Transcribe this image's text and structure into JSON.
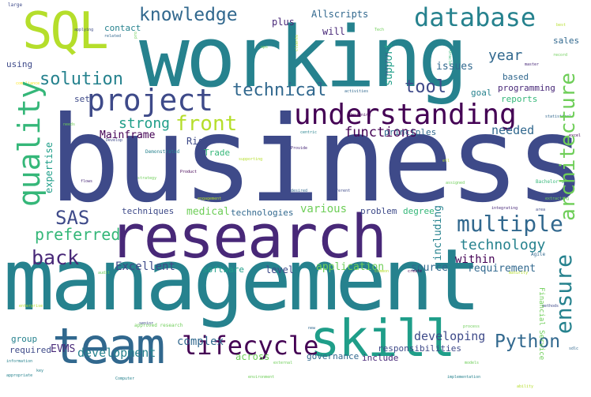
{
  "word_cloud": {
    "palette": {
      "dark_purple": "#440154",
      "purple": "#482878",
      "indigo": "#3e4a89",
      "blue": "#31688e",
      "teal_blue": "#26828e",
      "teal": "#1f9e89",
      "green": "#35b779",
      "light_green": "#6ece58",
      "lime": "#b5de2b",
      "yellow": "#fde725"
    },
    "words": [
      {
        "text": "business",
        "color": "#3e4a89"
      },
      {
        "text": "management",
        "color": "#26828e"
      },
      {
        "text": "working",
        "color": "#26828e"
      },
      {
        "text": "research",
        "color": "#482878"
      },
      {
        "text": "team",
        "color": "#31688e"
      },
      {
        "text": "skill",
        "color": "#1f9e89"
      },
      {
        "text": "SQL",
        "color": "#b5de2b"
      },
      {
        "text": "understanding",
        "color": "#440154"
      },
      {
        "text": "project",
        "color": "#3e4a89"
      },
      {
        "text": "database",
        "color": "#26828e"
      },
      {
        "text": "knowledge",
        "color": "#31688e"
      },
      {
        "text": "quality",
        "color": "#35b779"
      },
      {
        "text": "multiple",
        "color": "#31688e"
      },
      {
        "text": "architecture",
        "color": "#6ece58"
      },
      {
        "text": "front",
        "color": "#b5de2b"
      },
      {
        "text": "solution",
        "color": "#26828e"
      },
      {
        "text": "technical",
        "color": "#31688e"
      },
      {
        "text": "ensure",
        "color": "#26828e"
      },
      {
        "text": "lifecycle",
        "color": "#440154"
      },
      {
        "text": "Python",
        "color": "#31688e"
      },
      {
        "text": "back",
        "color": "#482878"
      },
      {
        "text": "SAS",
        "color": "#3e4a89"
      },
      {
        "text": "preferred",
        "color": "#35b779"
      },
      {
        "text": "technology",
        "color": "#26828e"
      },
      {
        "text": "tool",
        "color": "#3e4a89"
      },
      {
        "text": "strong",
        "color": "#1f9e89"
      },
      {
        "text": "year",
        "color": "#31688e"
      },
      {
        "text": "functions",
        "color": "#440154"
      },
      {
        "text": "developing",
        "color": "#3e4a89"
      },
      {
        "text": "development",
        "color": "#26828e"
      },
      {
        "text": "complex",
        "color": "#31688e"
      },
      {
        "text": "Excellent",
        "color": "#3e4a89"
      },
      {
        "text": "application",
        "color": "#6ece58"
      },
      {
        "text": "within",
        "color": "#440154"
      },
      {
        "text": "support",
        "color": "#1f9e89"
      },
      {
        "text": "issues",
        "color": "#31688e"
      },
      {
        "text": "including",
        "color": "#26828e"
      },
      {
        "text": "Mainframe",
        "color": "#440154"
      },
      {
        "text": "expertise",
        "color": "#1f9e89"
      },
      {
        "text": "needed",
        "color": "#31688e"
      },
      {
        "text": "various",
        "color": "#6ece58"
      },
      {
        "text": "medical",
        "color": "#6ece58"
      },
      {
        "text": "source",
        "color": "#31688e"
      },
      {
        "text": "requirement",
        "color": "#31688e"
      },
      {
        "text": "reports",
        "color": "#35b779"
      },
      {
        "text": "programming",
        "color": "#482878"
      },
      {
        "text": "based",
        "color": "#31688e"
      },
      {
        "text": "goal",
        "color": "#26828e"
      },
      {
        "text": "principles",
        "color": "#31688e"
      },
      {
        "text": "techniques",
        "color": "#3e4a89"
      },
      {
        "text": "technologies",
        "color": "#31688e"
      },
      {
        "text": "problem",
        "color": "#3e4a89"
      },
      {
        "text": "degree",
        "color": "#35b779"
      },
      {
        "text": "software",
        "color": "#1f9e89"
      },
      {
        "text": "level",
        "color": "#3e4a89"
      },
      {
        "text": "across",
        "color": "#6ece58"
      },
      {
        "text": "include",
        "color": "#482878"
      },
      {
        "text": "responsibilities",
        "color": "#3e4a89"
      },
      {
        "text": "governance",
        "color": "#31688e"
      },
      {
        "text": "EVMS",
        "color": "#482878"
      },
      {
        "text": "required",
        "color": "#3e4a89"
      },
      {
        "text": "group",
        "color": "#26828e"
      },
      {
        "text": "Risk",
        "color": "#3e4a89"
      },
      {
        "text": "Trade",
        "color": "#35b779"
      },
      {
        "text": "set",
        "color": "#3e4a89"
      },
      {
        "text": "using",
        "color": "#3e4a89"
      },
      {
        "text": "plus",
        "color": "#482878"
      },
      {
        "text": "will",
        "color": "#482878"
      },
      {
        "text": "contact",
        "color": "#26828e"
      },
      {
        "text": "Allscripts",
        "color": "#31688e"
      },
      {
        "text": "sales",
        "color": "#31688e"
      },
      {
        "text": "Financial Service",
        "color": "#6ece58"
      },
      {
        "text": "approved research",
        "color": "#6ece58"
      },
      {
        "text": "Bachelor s",
        "color": "#35b779"
      },
      {
        "text": "Demonstrated",
        "color": "#26828e"
      },
      {
        "text": "structures",
        "color": "#3e4a89"
      },
      {
        "text": "Oracle",
        "color": "#35b779"
      },
      {
        "text": "clients",
        "color": "#b5de2b"
      },
      {
        "text": "master",
        "color": "#482878"
      },
      {
        "text": "record",
        "color": "#6ece58"
      },
      {
        "text": "large",
        "color": "#3e4a89"
      },
      {
        "text": "applying",
        "color": "#3e4a89"
      },
      {
        "text": "related",
        "color": "#31688e"
      },
      {
        "text": "Agile",
        "color": "#31688e"
      },
      {
        "text": "centric",
        "color": "#26828e"
      },
      {
        "text": "Provide",
        "color": "#482878"
      },
      {
        "text": "Product",
        "color": "#440154"
      },
      {
        "text": "desired",
        "color": "#31688e"
      },
      {
        "text": "different",
        "color": "#3e4a89"
      },
      {
        "text": "assigned",
        "color": "#6ece58"
      },
      {
        "text": "Develop",
        "color": "#3e4a89"
      },
      {
        "text": "flows",
        "color": "#482878"
      },
      {
        "text": "needs",
        "color": "#6ece58"
      },
      {
        "text": "strategy",
        "color": "#6ece58"
      },
      {
        "text": "audit",
        "color": "#6ece58"
      },
      {
        "text": "senior",
        "color": "#3e4a89"
      },
      {
        "text": "information",
        "color": "#26828e"
      },
      {
        "text": "appropriate",
        "color": "#26828e"
      },
      {
        "text": "Computer",
        "color": "#26828e"
      },
      {
        "text": "external",
        "color": "#6ece58"
      },
      {
        "text": "models",
        "color": "#6ece58"
      },
      {
        "text": "create",
        "color": "#440154"
      },
      {
        "text": "common",
        "color": "#b5de2b"
      },
      {
        "text": "maturity",
        "color": "#b5de2b"
      },
      {
        "text": "extracting",
        "color": "#6ece58"
      },
      {
        "text": "integrating",
        "color": "#482878"
      },
      {
        "text": "area",
        "color": "#3e4a89"
      },
      {
        "text": "Tech",
        "color": "#6ece58"
      },
      {
        "text": "activities",
        "color": "#31688e"
      },
      {
        "text": "designing",
        "color": "#440154"
      },
      {
        "text": "engagement",
        "color": "#b5de2b"
      },
      {
        "text": "environment",
        "color": "#6ece58"
      },
      {
        "text": "implementation",
        "color": "#26828e"
      },
      {
        "text": "methods",
        "color": "#3e4a89"
      },
      {
        "text": "enterprise",
        "color": "#b5de2b"
      },
      {
        "text": "statistical",
        "color": "#31688e"
      },
      {
        "text": "supporting",
        "color": "#b5de2b"
      },
      {
        "text": "compliance",
        "color": "#fde725"
      },
      {
        "text": "ability",
        "color": "#b5de2b"
      },
      {
        "text": "new",
        "color": "#31688e"
      },
      {
        "text": "process",
        "color": "#6ece58"
      },
      {
        "text": "key",
        "color": "#26828e"
      },
      {
        "text": "best",
        "color": "#b5de2b"
      },
      {
        "text": "excel",
        "color": "#440154"
      },
      {
        "text": "ops",
        "color": "#6ece58"
      },
      {
        "text": "sdlc",
        "color": "#31688e"
      },
      {
        "text": "etl",
        "color": "#b5de2b"
      },
      {
        "text": "pro",
        "color": "#6ece58"
      }
    ]
  }
}
